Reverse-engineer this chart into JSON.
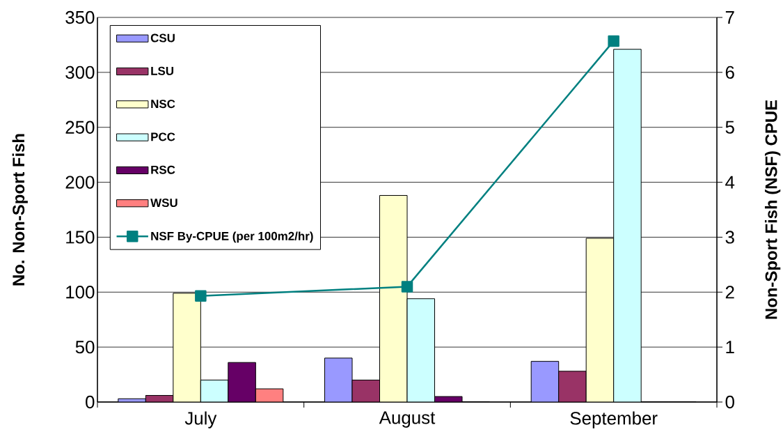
{
  "chart_data": {
    "type": "bar",
    "categories": [
      "July",
      "August",
      "September"
    ],
    "ylabel": "No. Non-Sport Fish",
    "y2label": "Non-Sport Fish (NSF) CPUE",
    "ylim": [
      0,
      350
    ],
    "yticks": [
      0,
      50,
      100,
      150,
      200,
      250,
      300,
      350
    ],
    "y2lim": [
      0,
      7
    ],
    "y2ticks": [
      0,
      1,
      2,
      3,
      4,
      5,
      6,
      7
    ],
    "grid": "y",
    "legend": "top left",
    "marker": "square",
    "series": [
      {
        "name": "CSU",
        "color": "#9999ff",
        "values": [
          3,
          40,
          37
        ]
      },
      {
        "name": "LSU",
        "color": "#993366",
        "values": [
          6,
          20,
          28
        ]
      },
      {
        "name": "NSC",
        "color": "#ffffcc",
        "values": [
          99,
          188,
          149
        ]
      },
      {
        "name": "PCC",
        "color": "#ccffff",
        "values": [
          20,
          94,
          321
        ]
      },
      {
        "name": "RSC",
        "color": "#660066",
        "values": [
          36,
          5,
          0
        ]
      },
      {
        "name": "WSU",
        "color": "#ff8080",
        "values": [
          12,
          0,
          0
        ]
      },
      {
        "name": "NSF By-CPUE (per 100m2/hr)",
        "type": "line",
        "axis": "y2",
        "color": "#008080",
        "values": [
          1.93,
          2.1,
          6.57
        ]
      }
    ]
  }
}
